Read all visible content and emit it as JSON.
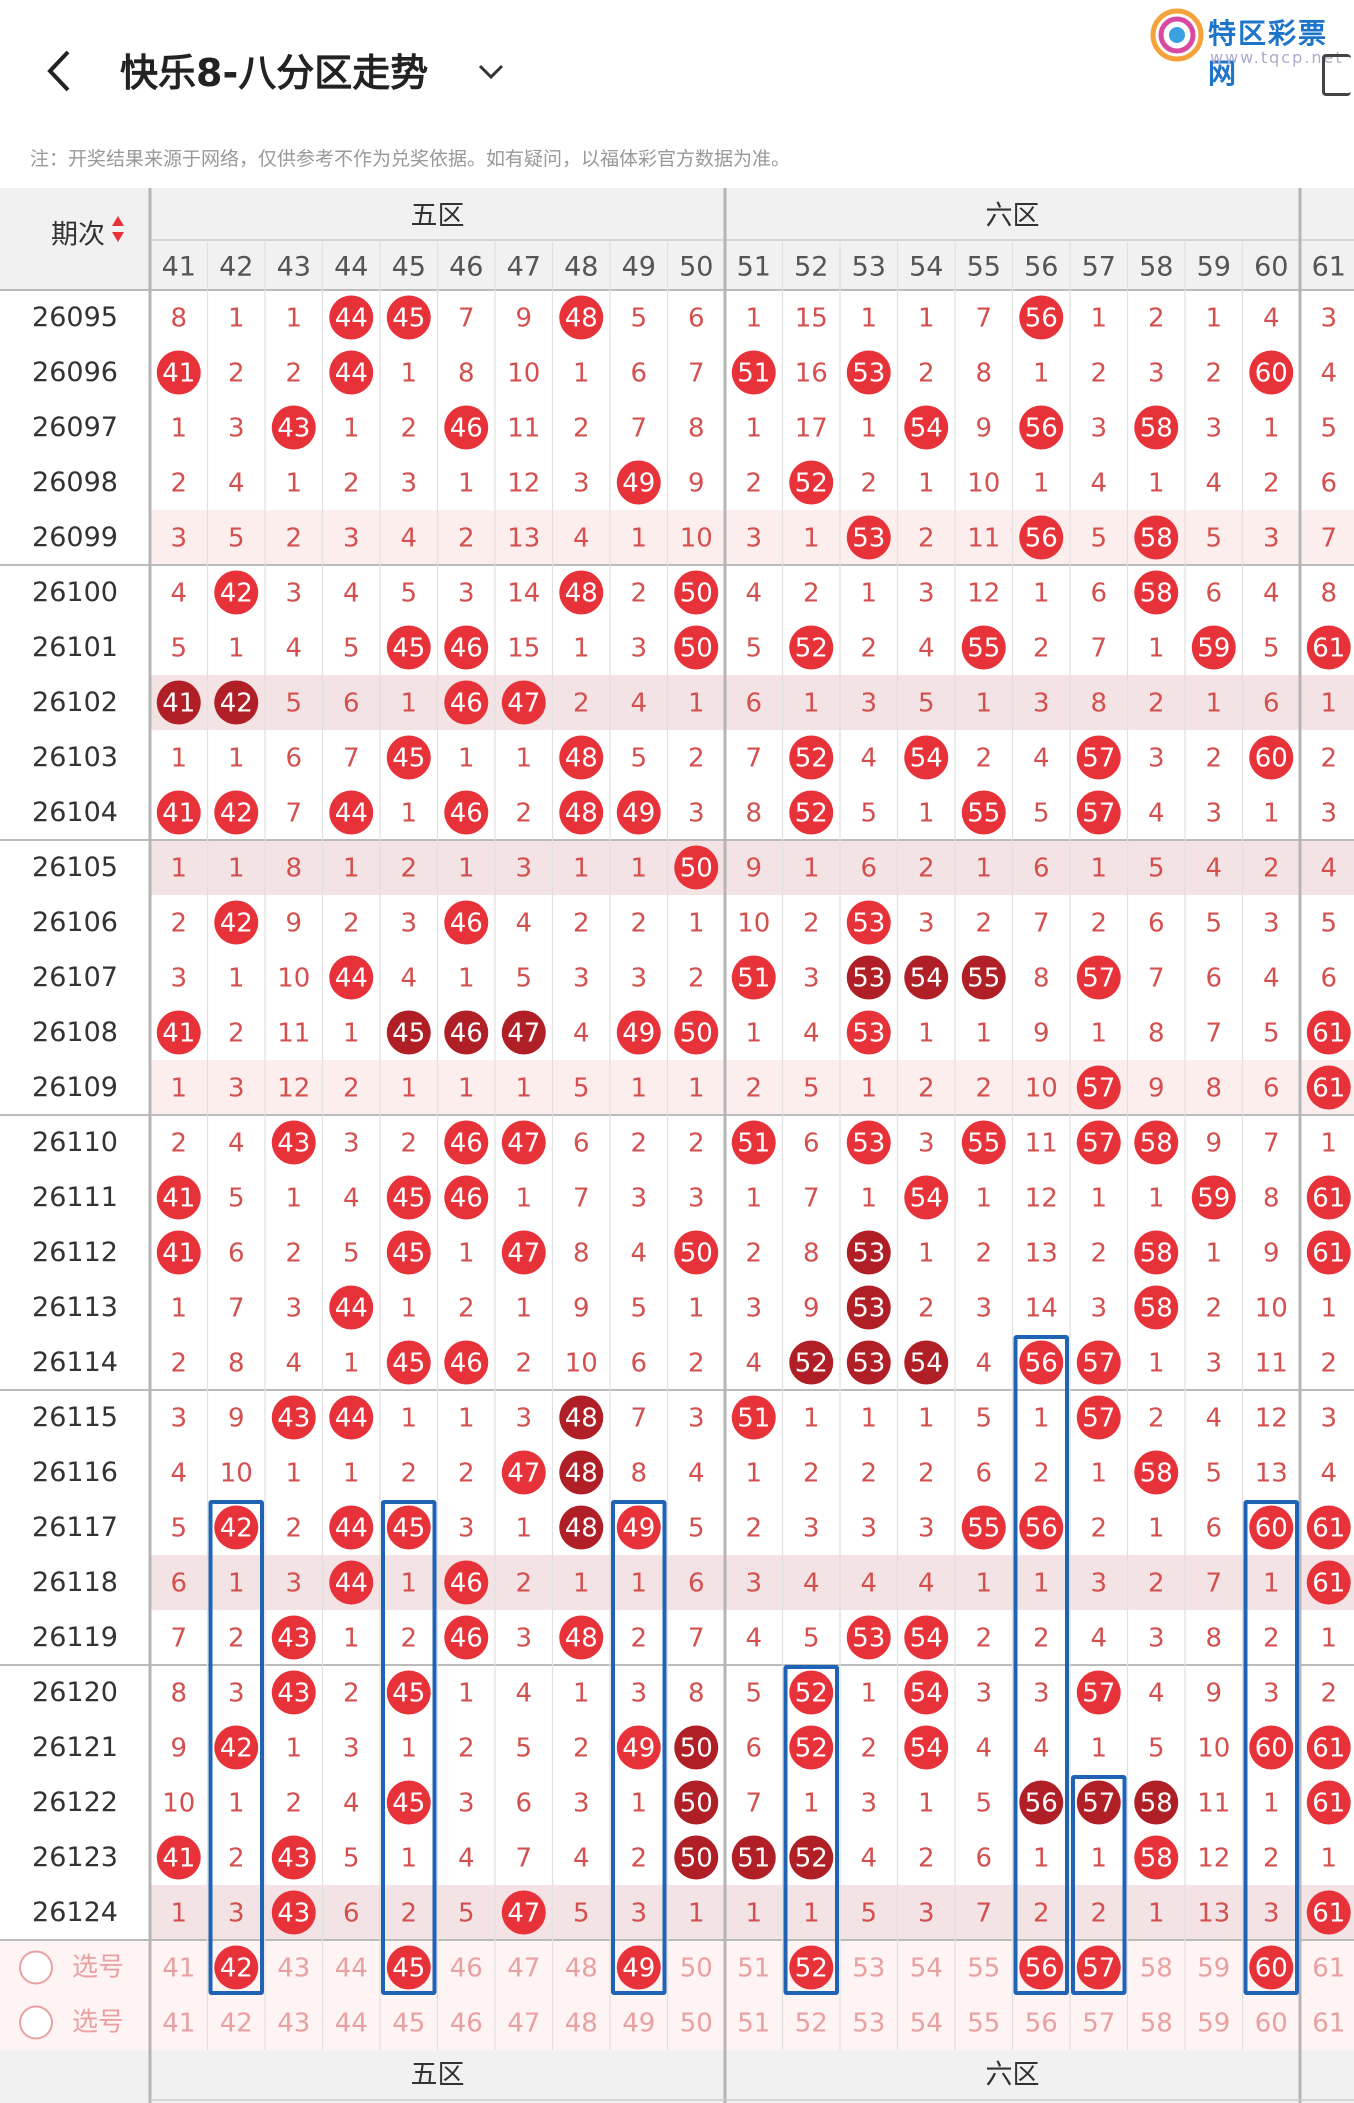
{
  "header": {
    "title": "快乐8-八分区走势",
    "watermark_main": "特区彩票网",
    "watermark_sub": "www.tqcp.net"
  },
  "note": "注：开奖结果来源于网络，仅供参考不作为兑奖依据。如有疑问，以福体彩官方数据为准。",
  "table": {
    "period_header": "期次",
    "zones": [
      "五区",
      "六区"
    ],
    "columns": [
      41,
      42,
      43,
      44,
      45,
      46,
      47,
      48,
      49,
      50,
      51,
      52,
      53,
      54,
      55,
      56,
      57,
      58,
      59,
      60,
      61
    ],
    "rows": [
      {
        "period": "26095",
        "cells": [
          "8",
          "1",
          "1",
          "44",
          "45",
          "7",
          "9",
          "48",
          "5",
          "6",
          "1",
          "15",
          "1",
          "1",
          "7",
          "56",
          "1",
          "2",
          "1",
          "4",
          "3"
        ]
      },
      {
        "period": "26096",
        "cells": [
          "41",
          "2",
          "2",
          "44",
          "1",
          "8",
          "10",
          "1",
          "6",
          "7",
          "51",
          "16",
          "53",
          "2",
          "8",
          "1",
          "2",
          "3",
          "2",
          "60",
          "4"
        ]
      },
      {
        "period": "26097",
        "cells": [
          "1",
          "3",
          "43",
          "1",
          "2",
          "46",
          "11",
          "2",
          "7",
          "8",
          "1",
          "17",
          "1",
          "54",
          "9",
          "56",
          "3",
          "58",
          "3",
          "1",
          "5"
        ]
      },
      {
        "period": "26098",
        "cells": [
          "2",
          "4",
          "1",
          "2",
          "3",
          "1",
          "12",
          "3",
          "49",
          "9",
          "2",
          "52",
          "2",
          "1",
          "10",
          "1",
          "4",
          "1",
          "4",
          "2",
          "6"
        ]
      },
      {
        "period": "26099",
        "cells": [
          "3",
          "5",
          "2",
          "3",
          "4",
          "2",
          "13",
          "4",
          "1",
          "10",
          "3",
          "1",
          "53",
          "2",
          "11",
          "56",
          "5",
          "58",
          "5",
          "3",
          "7"
        ]
      },
      {
        "period": "26100",
        "cells": [
          "4",
          "42",
          "3",
          "4",
          "5",
          "3",
          "14",
          "48",
          "2",
          "50",
          "4",
          "2",
          "1",
          "3",
          "12",
          "1",
          "6",
          "58",
          "6",
          "4",
          "8"
        ]
      },
      {
        "period": "26101",
        "cells": [
          "5",
          "1",
          "4",
          "5",
          "45",
          "46",
          "15",
          "1",
          "3",
          "50",
          "5",
          "52",
          "2",
          "4",
          "55",
          "2",
          "7",
          "1",
          "59",
          "5",
          "61"
        ]
      },
      {
        "period": "26102",
        "cells": [
          "41",
          "42",
          "5",
          "6",
          "1",
          "46",
          "47",
          "2",
          "4",
          "1",
          "6",
          "1",
          "3",
          "5",
          "1",
          "3",
          "8",
          "2",
          "1",
          "6",
          "1"
        ]
      },
      {
        "period": "26103",
        "cells": [
          "1",
          "1",
          "6",
          "7",
          "45",
          "1",
          "1",
          "48",
          "5",
          "2",
          "7",
          "52",
          "4",
          "54",
          "2",
          "4",
          "57",
          "3",
          "2",
          "60",
          "2"
        ]
      },
      {
        "period": "26104",
        "cells": [
          "41",
          "42",
          "7",
          "44",
          "1",
          "46",
          "2",
          "48",
          "49",
          "3",
          "8",
          "52",
          "5",
          "1",
          "55",
          "5",
          "57",
          "4",
          "3",
          "1",
          "3"
        ]
      },
      {
        "period": "26105",
        "cells": [
          "1",
          "1",
          "8",
          "1",
          "2",
          "1",
          "3",
          "1",
          "1",
          "50",
          "9",
          "1",
          "6",
          "2",
          "1",
          "6",
          "1",
          "5",
          "4",
          "2",
          "4"
        ]
      },
      {
        "period": "26106",
        "cells": [
          "2",
          "42",
          "9",
          "2",
          "3",
          "46",
          "4",
          "2",
          "2",
          "1",
          "10",
          "2",
          "53",
          "3",
          "2",
          "7",
          "2",
          "6",
          "5",
          "3",
          "5"
        ]
      },
      {
        "period": "26107",
        "cells": [
          "3",
          "1",
          "10",
          "44",
          "4",
          "1",
          "5",
          "3",
          "3",
          "2",
          "51",
          "3",
          "53",
          "54",
          "55",
          "8",
          "57",
          "7",
          "6",
          "4",
          "6"
        ]
      },
      {
        "period": "26108",
        "cells": [
          "41",
          "2",
          "11",
          "1",
          "45",
          "46",
          "47",
          "4",
          "49",
          "50",
          "1",
          "4",
          "53",
          "1",
          "1",
          "9",
          "1",
          "8",
          "7",
          "5",
          "61"
        ]
      },
      {
        "period": "26109",
        "cells": [
          "1",
          "3",
          "12",
          "2",
          "1",
          "1",
          "1",
          "5",
          "1",
          "1",
          "2",
          "5",
          "1",
          "2",
          "2",
          "10",
          "57",
          "9",
          "8",
          "6",
          "61"
        ]
      },
      {
        "period": "26110",
        "cells": [
          "2",
          "4",
          "43",
          "3",
          "2",
          "46",
          "47",
          "6",
          "2",
          "2",
          "51",
          "6",
          "53",
          "3",
          "55",
          "11",
          "57",
          "58",
          "9",
          "7",
          "1"
        ]
      },
      {
        "period": "26111",
        "cells": [
          "41",
          "5",
          "1",
          "4",
          "45",
          "46",
          "1",
          "7",
          "3",
          "3",
          "1",
          "7",
          "1",
          "54",
          "1",
          "12",
          "1",
          "1",
          "59",
          "8",
          "61"
        ]
      },
      {
        "period": "26112",
        "cells": [
          "41",
          "6",
          "2",
          "5",
          "45",
          "1",
          "47",
          "8",
          "4",
          "50",
          "2",
          "8",
          "53",
          "1",
          "2",
          "13",
          "2",
          "58",
          "1",
          "9",
          "61"
        ]
      },
      {
        "period": "26113",
        "cells": [
          "1",
          "7",
          "3",
          "44",
          "1",
          "2",
          "1",
          "9",
          "5",
          "1",
          "3",
          "9",
          "53",
          "2",
          "3",
          "14",
          "3",
          "58",
          "2",
          "10",
          "1"
        ]
      },
      {
        "period": "26114",
        "cells": [
          "2",
          "8",
          "4",
          "1",
          "45",
          "46",
          "2",
          "10",
          "6",
          "2",
          "4",
          "52",
          "53",
          "54",
          "4",
          "56",
          "57",
          "1",
          "3",
          "11",
          "2"
        ]
      },
      {
        "period": "26115",
        "cells": [
          "3",
          "9",
          "43",
          "44",
          "1",
          "1",
          "3",
          "48",
          "7",
          "3",
          "51",
          "1",
          "1",
          "1",
          "5",
          "1",
          "57",
          "2",
          "4",
          "12",
          "3"
        ]
      },
      {
        "period": "26116",
        "cells": [
          "4",
          "10",
          "1",
          "1",
          "2",
          "2",
          "47",
          "48",
          "8",
          "4",
          "1",
          "2",
          "2",
          "2",
          "6",
          "2",
          "1",
          "58",
          "5",
          "13",
          "4"
        ]
      },
      {
        "period": "26117",
        "cells": [
          "5",
          "42",
          "2",
          "44",
          "45",
          "3",
          "1",
          "48",
          "49",
          "5",
          "2",
          "3",
          "3",
          "3",
          "55",
          "56",
          "2",
          "1",
          "6",
          "60",
          "61"
        ]
      },
      {
        "period": "26118",
        "cells": [
          "6",
          "1",
          "3",
          "44",
          "1",
          "46",
          "2",
          "1",
          "1",
          "6",
          "3",
          "4",
          "4",
          "4",
          "1",
          "1",
          "3",
          "2",
          "7",
          "1",
          "61"
        ]
      },
      {
        "period": "26119",
        "cells": [
          "7",
          "2",
          "43",
          "1",
          "2",
          "46",
          "3",
          "48",
          "2",
          "7",
          "4",
          "5",
          "53",
          "54",
          "2",
          "2",
          "4",
          "3",
          "8",
          "2",
          "1"
        ]
      },
      {
        "period": "26120",
        "cells": [
          "8",
          "3",
          "43",
          "2",
          "45",
          "1",
          "4",
          "1",
          "3",
          "8",
          "5",
          "52",
          "1",
          "54",
          "3",
          "3",
          "57",
          "4",
          "9",
          "3",
          "2"
        ]
      },
      {
        "period": "26121",
        "cells": [
          "9",
          "42",
          "1",
          "3",
          "1",
          "2",
          "5",
          "2",
          "49",
          "50",
          "6",
          "52",
          "2",
          "54",
          "4",
          "4",
          "1",
          "5",
          "10",
          "60",
          "61"
        ]
      },
      {
        "period": "26122",
        "cells": [
          "10",
          "1",
          "2",
          "4",
          "45",
          "3",
          "6",
          "3",
          "1",
          "50",
          "7",
          "1",
          "3",
          "1",
          "5",
          "56",
          "57",
          "58",
          "11",
          "1",
          "61"
        ]
      },
      {
        "period": "26123",
        "cells": [
          "41",
          "2",
          "43",
          "5",
          "1",
          "4",
          "7",
          "4",
          "2",
          "50",
          "51",
          "52",
          "4",
          "2",
          "6",
          "1",
          "1",
          "58",
          "12",
          "2",
          "1"
        ]
      },
      {
        "period": "26124",
        "cells": [
          "1",
          "3",
          "43",
          "6",
          "2",
          "5",
          "47",
          "5",
          "3",
          "1",
          "1",
          "1",
          "5",
          "3",
          "7",
          "2",
          "2",
          "1",
          "13",
          "3",
          "61"
        ]
      }
    ],
    "dark_balls": [
      "26102-41",
      "26102-42",
      "26107-53",
      "26107-54",
      "26107-55",
      "26108-45",
      "26108-46",
      "26108-47",
      "26112-53",
      "26113-53",
      "26114-52",
      "26114-53",
      "26114-54",
      "26115-48",
      "26116-48",
      "26117-48",
      "26121-50",
      "26122-50",
      "26122-56",
      "26122-57",
      "26122-58",
      "26123-50",
      "26123-51",
      "26123-52"
    ],
    "select_label": "选号",
    "select_rows": [
      {
        "selected": [
          42,
          45,
          49,
          52,
          56,
          57,
          60
        ]
      },
      {
        "selected": []
      }
    ],
    "highlight_boxes": [
      {
        "col": 42,
        "from": "26117",
        "to": "select1"
      },
      {
        "col": 45,
        "from": "26117",
        "to": "select1"
      },
      {
        "col": 49,
        "from": "26117",
        "to": "select1"
      },
      {
        "col": 52,
        "from": "26120",
        "to": "select1"
      },
      {
        "col": 56,
        "from": "26114",
        "to": "select1"
      },
      {
        "col": 57,
        "from": "26122",
        "to": "select1"
      },
      {
        "col": 60,
        "from": "26117",
        "to": "select1"
      }
    ]
  },
  "colors": {
    "ball": "#e8323a",
    "ball_dark": "#b01e26",
    "miss_text": "#d4504f",
    "period_text": "#333333",
    "band_pink": "#fdeeee",
    "band_shade": "#f3e3e4",
    "header_bg": "#f1f1f1",
    "box": "#1f64b4",
    "select_text": "#e8a0a0"
  }
}
